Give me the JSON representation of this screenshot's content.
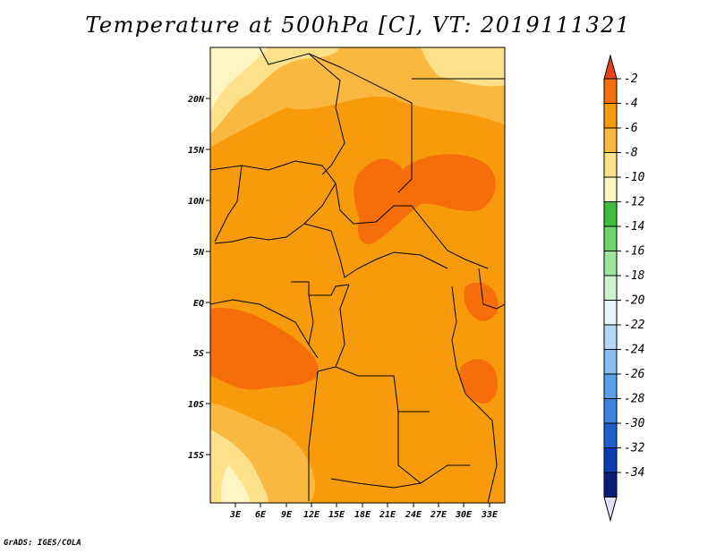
{
  "title": "Temperature at 500hPa [C], VT: 2019111321",
  "credit": "GrADS: IGES/COLA",
  "map": {
    "lat_labels": [
      "20N",
      "15N",
      "10N",
      "5N",
      "EQ",
      "5S",
      "10S",
      "15S"
    ],
    "lon_labels": [
      "3E",
      "6E",
      "9E",
      "12E",
      "15E",
      "18E",
      "21E",
      "24E",
      "27E",
      "30E",
      "33E"
    ]
  },
  "colorbar": {
    "labels": [
      "-2",
      "-4",
      "-6",
      "-8",
      "-10",
      "-12",
      "-14",
      "-16",
      "-18",
      "-20",
      "-22",
      "-24",
      "-26",
      "-28",
      "-30",
      "-32",
      "-34"
    ],
    "colors": [
      "#e8401a",
      "#f56e0a",
      "#f79b0d",
      "#fab840",
      "#fde08a",
      "#fff5c2",
      "#3cbe3c",
      "#6ed46e",
      "#9ee39e",
      "#cdf3cd",
      "#e6f5fa",
      "#b4d7f5",
      "#87bdf0",
      "#5aa0eb",
      "#3c82e1",
      "#1e5fcd",
      "#0a3cb4",
      "#0a1e78",
      "#e1e1f5"
    ]
  }
}
